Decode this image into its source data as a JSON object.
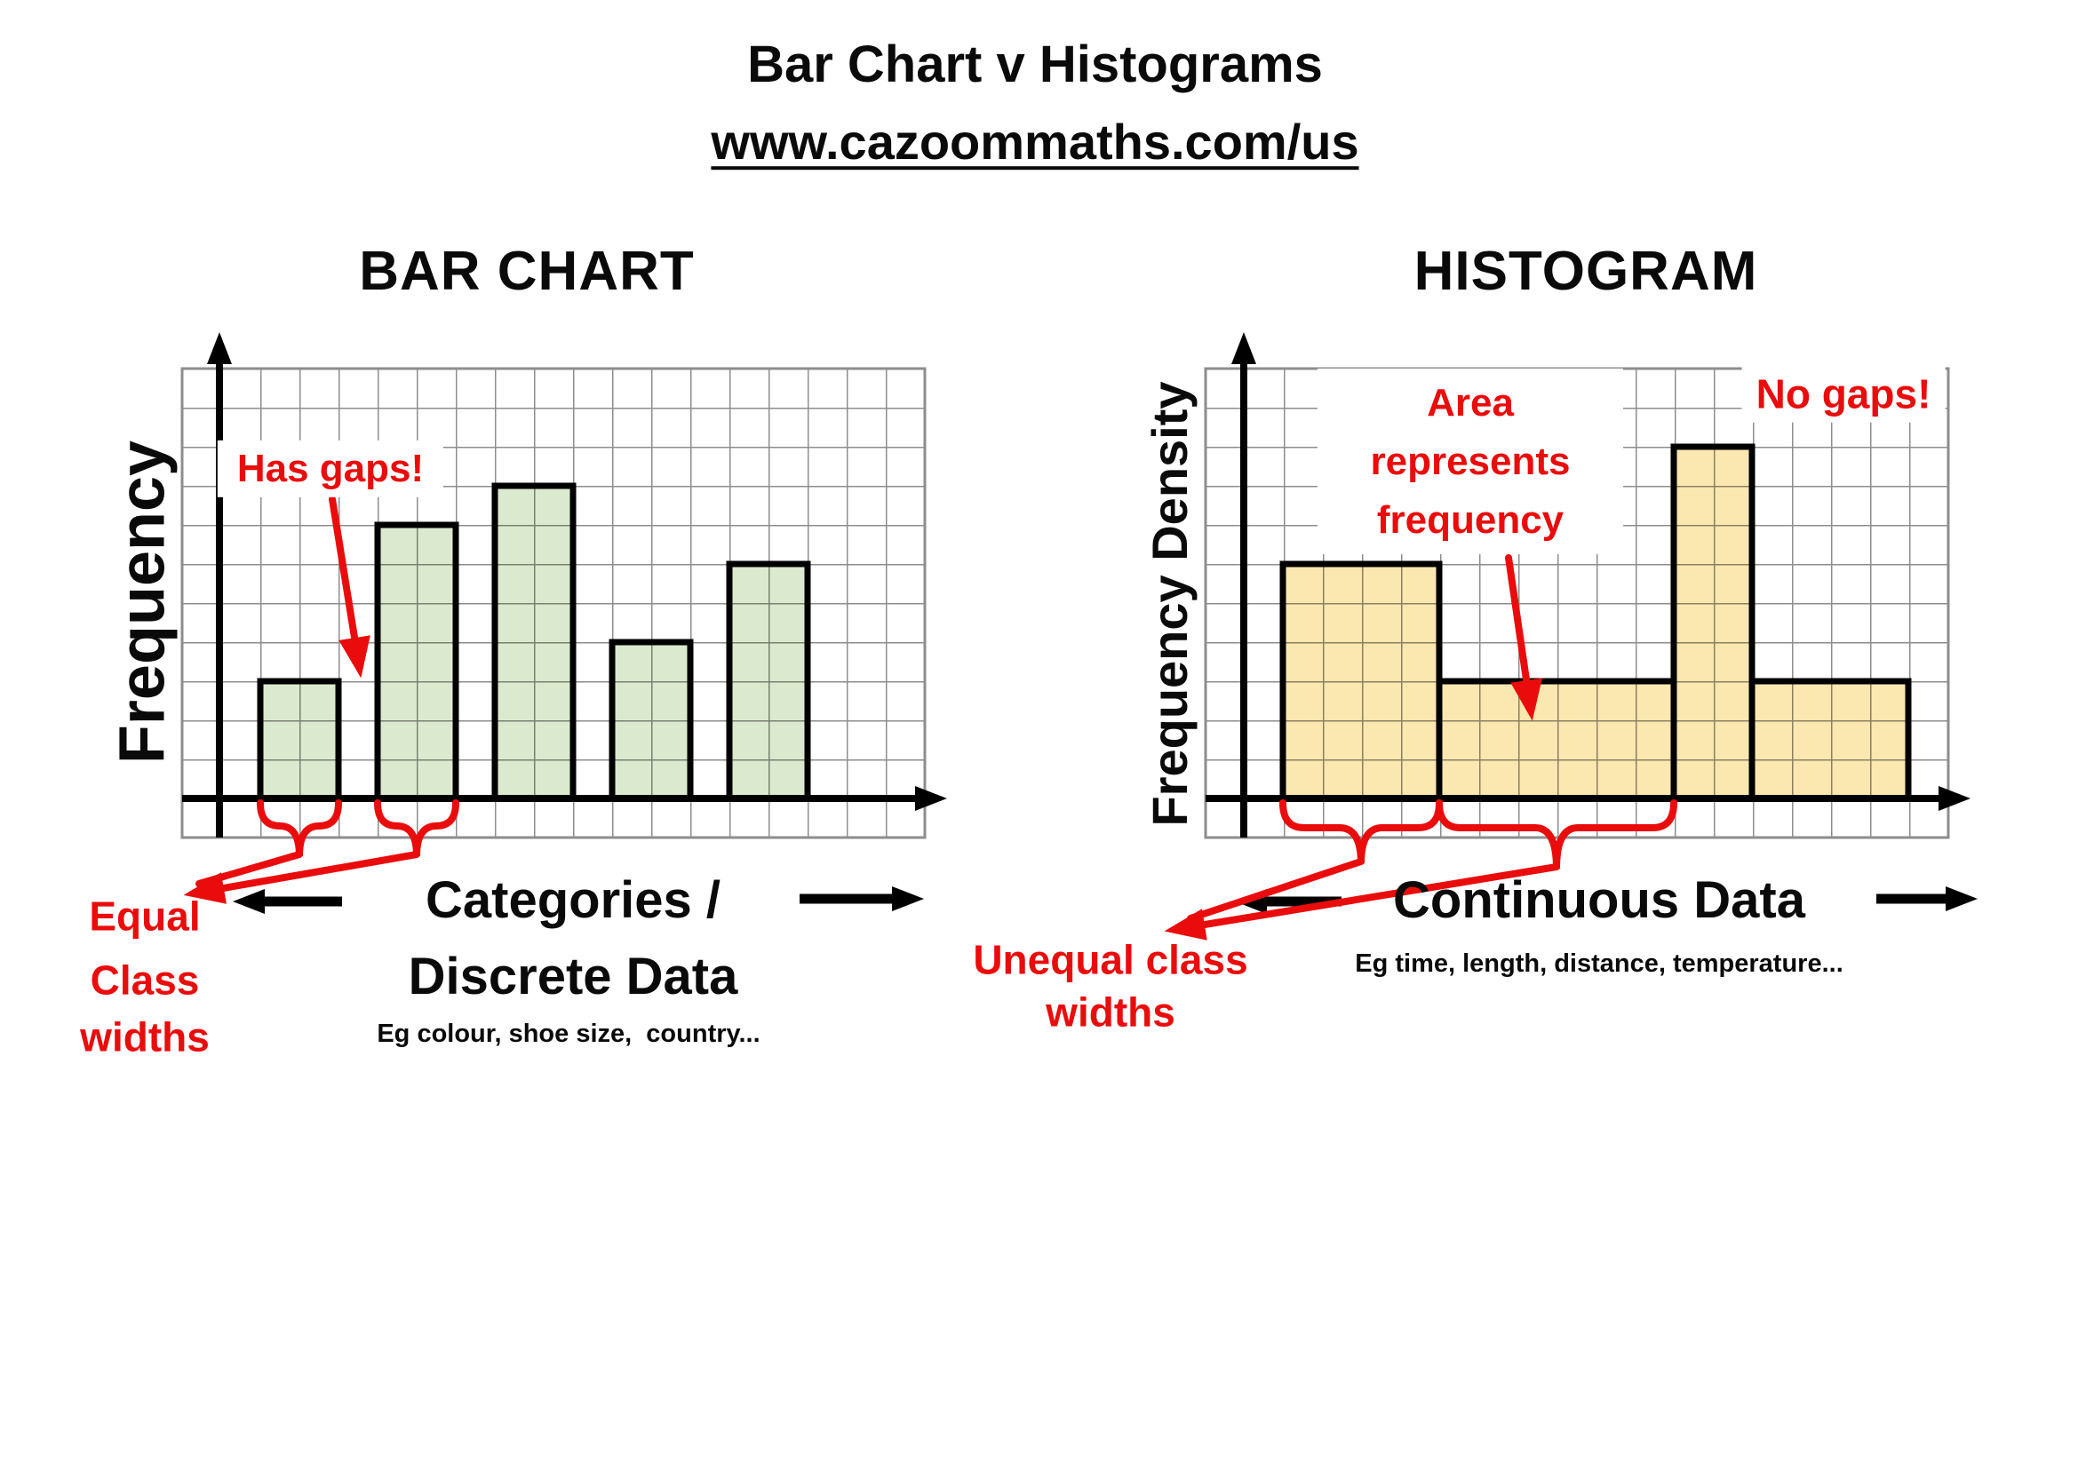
{
  "header": {
    "title": "Bar Chart v Histograms",
    "url": "www.cazoommaths.com/us"
  },
  "bar_chart_panel": {
    "heading": "BAR CHART",
    "y_axis_label": "Frequency",
    "gaps_callout": "Has gaps!",
    "class_width_note": [
      "Equal",
      "Class",
      "widths"
    ],
    "x_axis_label_line1": "Categories /",
    "x_axis_label_line2": "Discrete Data",
    "x_axis_examples": "Eg colour, shoe size,  country..."
  },
  "histogram_panel": {
    "heading": "HISTOGRAM",
    "y_axis_label": "Frequency Density",
    "area_callout": [
      "Area",
      "represents",
      "frequency"
    ],
    "no_gaps_callout": "No gaps!",
    "class_width_note": [
      "Unequal class",
      "widths"
    ],
    "x_axis_label": "Continuous Data",
    "x_axis_examples": "Eg time, length, distance, temperature..."
  },
  "colors": {
    "bar_fill_green": "#dbeace",
    "histogram_fill_tan": "#fbe7b0",
    "annotation_red": "#ea0c0c",
    "grid_gray": "#8d8d8d",
    "ink_black": "#000000"
  },
  "chart_data": [
    {
      "type": "bar",
      "subtype": "bar-chart",
      "title": "BAR CHART",
      "ylabel": "Frequency",
      "xlabel": "Categories / Discrete Data",
      "x_examples": "Eg colour, shoe size,  country...",
      "values": [
        3,
        7,
        8,
        4,
        6
      ],
      "value_units": "grid cells (no numeric tick labels shown)",
      "bar_width_cells": 2,
      "bar_gap_cells": 1,
      "grid": true,
      "legend": "none",
      "annotations": [
        "Has gaps!",
        "Equal Class widths"
      ]
    },
    {
      "type": "bar",
      "subtype": "histogram",
      "title": "HISTOGRAM",
      "ylabel": "Frequency Density",
      "xlabel": "Continuous Data",
      "x_examples": "Eg time, length, distance, temperature...",
      "class_boundaries_cells": [
        1,
        5,
        11,
        13,
        17
      ],
      "class_widths_cells": [
        4,
        6,
        2,
        4
      ],
      "frequency_densities": [
        6,
        3,
        9,
        3
      ],
      "areas_as_frequencies": [
        24,
        18,
        18,
        12
      ],
      "grid": true,
      "legend": "none",
      "annotations": [
        "Area represents frequency",
        "No gaps!",
        "Unequal class widths"
      ]
    }
  ]
}
